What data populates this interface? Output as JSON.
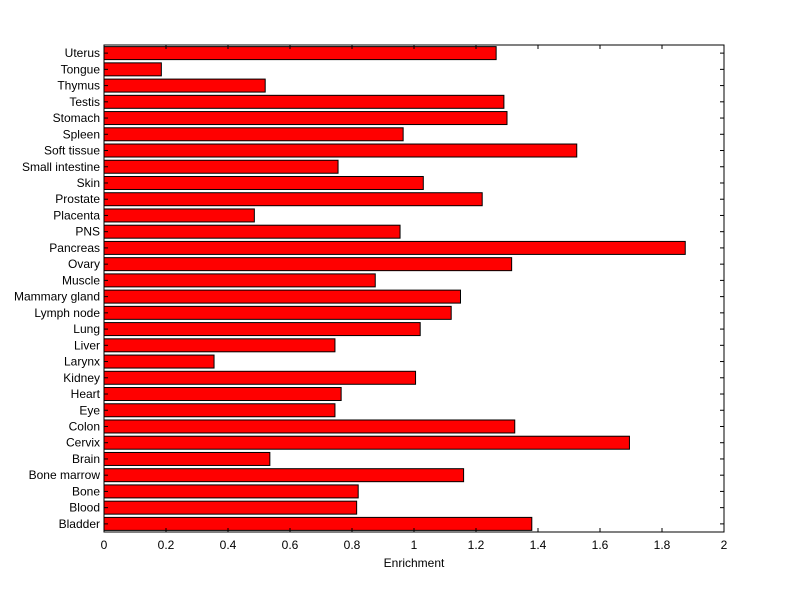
{
  "chart_data": {
    "type": "bar",
    "orientation": "horizontal",
    "title": "",
    "xlabel": "Enrichment",
    "ylabel": "",
    "xlim": [
      0,
      2
    ],
    "xticks": [
      "0",
      "0.2",
      "0.4",
      "0.6",
      "0.8",
      "1",
      "1.2",
      "1.4",
      "1.6",
      "1.8",
      "2"
    ],
    "grid": false,
    "bar_color": "#ff0000",
    "categories": [
      "Bladder",
      "Blood",
      "Bone",
      "Bone marrow",
      "Brain",
      "Cervix",
      "Colon",
      "Eye",
      "Heart",
      "Kidney",
      "Larynx",
      "Liver",
      "Lung",
      "Lymph node",
      "Mammary gland",
      "Muscle",
      "Ovary",
      "Pancreas",
      "PNS",
      "Placenta",
      "Prostate",
      "Skin",
      "Small intestine",
      "Soft tissue",
      "Spleen",
      "Stomach",
      "Testis",
      "Thymus",
      "Tongue",
      "Uterus"
    ],
    "values": [
      1.38,
      0.815,
      0.82,
      1.16,
      0.535,
      1.695,
      1.325,
      0.745,
      0.765,
      1.005,
      0.355,
      0.745,
      1.02,
      1.12,
      1.15,
      0.875,
      1.315,
      1.875,
      0.955,
      0.485,
      1.22,
      1.03,
      0.755,
      1.525,
      0.965,
      1.3,
      1.29,
      0.52,
      0.185,
      1.265
    ]
  }
}
